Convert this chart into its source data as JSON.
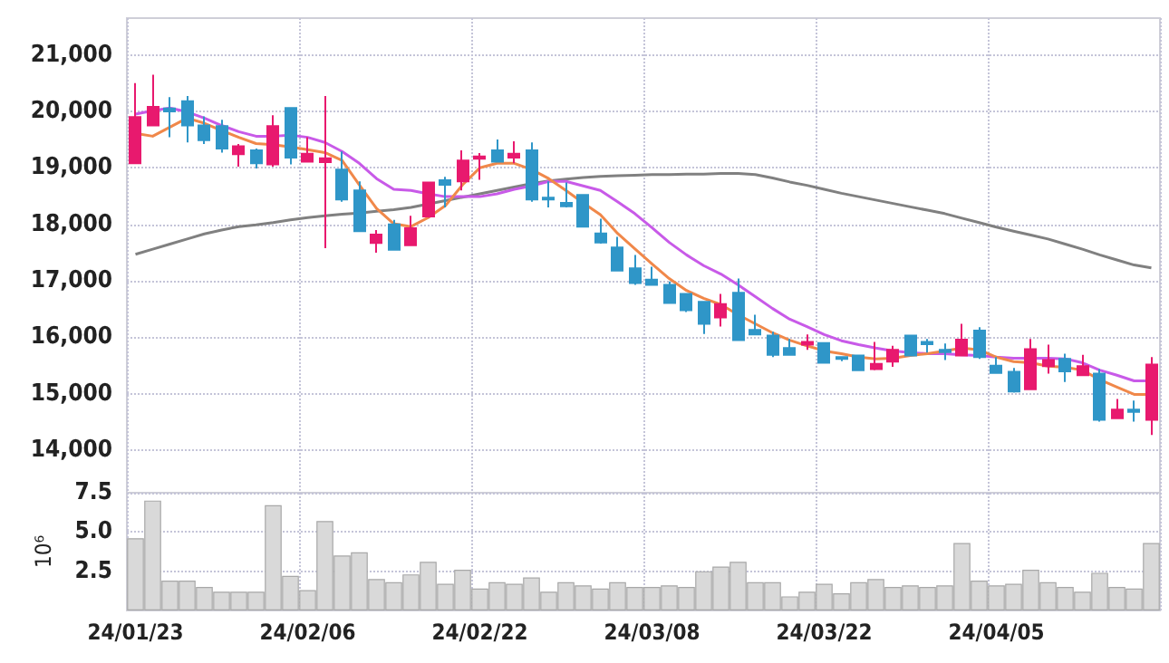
{
  "chart_data": [
    {
      "type": "candlestick",
      "categories": [
        null,
        null,
        null,
        null,
        null,
        null,
        null,
        null,
        null,
        null,
        null,
        null,
        null,
        null,
        null,
        null,
        null,
        null,
        null,
        null,
        null,
        null,
        null,
        null,
        null,
        null,
        null,
        null,
        null,
        null,
        null,
        null,
        null,
        null,
        null,
        null,
        null,
        null,
        null,
        null,
        null,
        null,
        null,
        null,
        null,
        null,
        null,
        null,
        null,
        null,
        null,
        null,
        null,
        null,
        null,
        null,
        null,
        null,
        null,
        null
      ],
      "ohlc": [
        [
          19080,
          20500,
          19080,
          19900
        ],
        [
          19750,
          20650,
          19750,
          20080
        ],
        [
          20050,
          20250,
          19540,
          20000
        ],
        [
          20180,
          20270,
          19450,
          19750
        ],
        [
          19750,
          19910,
          19420,
          19490
        ],
        [
          19740,
          19850,
          19270,
          19340
        ],
        [
          19240,
          19420,
          19020,
          19380
        ],
        [
          19310,
          19340,
          18990,
          19080
        ],
        [
          19060,
          19930,
          19020,
          19740
        ],
        [
          20060,
          20060,
          19060,
          19180
        ],
        [
          19110,
          19540,
          19110,
          19250
        ],
        [
          19100,
          20270,
          17580,
          19170
        ],
        [
          18970,
          19290,
          18400,
          18440
        ],
        [
          18600,
          18760,
          17880,
          17880
        ],
        [
          17670,
          17900,
          17500,
          17820
        ],
        [
          18000,
          18080,
          17550,
          17550
        ],
        [
          17630,
          18150,
          17630,
          17930
        ],
        [
          18140,
          18740,
          18120,
          18740
        ],
        [
          18780,
          18840,
          18300,
          18700
        ],
        [
          18760,
          19310,
          18600,
          19130
        ],
        [
          19160,
          19260,
          18790,
          19200
        ],
        [
          19310,
          19500,
          19110,
          19110
        ],
        [
          19180,
          19470,
          19080,
          19250
        ],
        [
          19310,
          19450,
          18400,
          18440
        ],
        [
          18470,
          18760,
          18300,
          18440
        ],
        [
          18380,
          18740,
          18300,
          18320
        ],
        [
          18520,
          18520,
          17960,
          17960
        ],
        [
          17840,
          18100,
          17660,
          17680
        ],
        [
          17590,
          17780,
          17170,
          17180
        ],
        [
          17220,
          17460,
          16930,
          16960
        ],
        [
          17020,
          17250,
          16930,
          16930
        ],
        [
          16930,
          16990,
          16610,
          16610
        ],
        [
          16770,
          16770,
          16450,
          16480
        ],
        [
          16630,
          16630,
          16060,
          16240
        ],
        [
          16350,
          16770,
          16190,
          16590
        ],
        [
          16790,
          17040,
          15950,
          15950
        ],
        [
          16130,
          16400,
          16050,
          16050
        ],
        [
          16030,
          16100,
          15650,
          15690
        ],
        [
          15810,
          15970,
          15690,
          15690
        ],
        [
          15870,
          16050,
          15780,
          15920
        ],
        [
          15900,
          15900,
          15550,
          15550
        ],
        [
          15650,
          15650,
          15580,
          15620
        ],
        [
          15680,
          15680,
          15420,
          15420
        ],
        [
          15440,
          15920,
          15420,
          15530
        ],
        [
          15570,
          15850,
          15480,
          15780
        ],
        [
          16030,
          16030,
          15680,
          15680
        ],
        [
          15920,
          15970,
          15730,
          15880
        ],
        [
          15780,
          15890,
          15600,
          15740
        ],
        [
          15680,
          16240,
          15680,
          15960
        ],
        [
          16120,
          16180,
          15620,
          15650
        ],
        [
          15500,
          15650,
          15370,
          15370
        ],
        [
          15390,
          15460,
          15020,
          15040
        ],
        [
          15080,
          15970,
          15080,
          15790
        ],
        [
          15490,
          15870,
          15360,
          15600
        ],
        [
          15620,
          15710,
          15210,
          15400
        ],
        [
          15330,
          15690,
          15330,
          15490
        ],
        [
          15360,
          15440,
          14510,
          14540
        ],
        [
          14570,
          14910,
          14570,
          14720
        ],
        [
          14720,
          14880,
          14510,
          14680
        ],
        [
          14540,
          15650,
          14270,
          15520
        ]
      ],
      "colors": [
        "#e8196e",
        "#e8196e",
        "#2f96c8",
        "#2f96c8",
        "#2f96c8",
        "#2f96c8",
        "#e8196e",
        "#2f96c8",
        "#e8196e",
        "#2f96c8",
        "#e8196e",
        "#e8196e",
        "#2f96c8",
        "#2f96c8",
        "#e8196e",
        "#2f96c8",
        "#e8196e",
        "#e8196e",
        "#2f96c8",
        "#e8196e",
        "#e8196e",
        "#2f96c8",
        "#e8196e",
        "#2f96c8",
        "#2f96c8",
        "#2f96c8",
        "#2f96c8",
        "#2f96c8",
        "#2f96c8",
        "#2f96c8",
        "#2f96c8",
        "#2f96c8",
        "#2f96c8",
        "#2f96c8",
        "#e8196e",
        "#2f96c8",
        "#2f96c8",
        "#2f96c8",
        "#2f96c8",
        "#e8196e",
        "#2f96c8",
        "#2f96c8",
        "#2f96c8",
        "#e8196e",
        "#e8196e",
        "#2f96c8",
        "#2f96c8",
        "#2f96c8",
        "#e8196e",
        "#2f96c8",
        "#2f96c8",
        "#2f96c8",
        "#e8196e",
        "#e8196e",
        "#2f96c8",
        "#e8196e",
        "#2f96c8",
        "#e8196e",
        "#2f96c8",
        "#e8196e"
      ],
      "series": [
        {
          "type": "line",
          "color": "#808080",
          "values": [
            17470,
            17560,
            17650,
            17740,
            17830,
            17900,
            17960,
            17990,
            18030,
            18080,
            18120,
            18150,
            18180,
            18200,
            18230,
            18260,
            18300,
            18360,
            18420,
            18480,
            18540,
            18600,
            18660,
            18720,
            18770,
            18800,
            18830,
            18850,
            18860,
            18870,
            18880,
            18880,
            18890,
            18890,
            18900,
            18900,
            18880,
            18820,
            18750,
            18690,
            18620,
            18550,
            18490,
            18430,
            18370,
            18310,
            18250,
            18190,
            18110,
            18030,
            17950,
            17880,
            17810,
            17740,
            17650,
            17560,
            17460,
            17370,
            17280,
            17230
          ]
        },
        {
          "type": "line",
          "color": "#c85ae8",
          "values": [
            19950,
            20010,
            20060,
            19990,
            19880,
            19750,
            19640,
            19560,
            19560,
            19580,
            19540,
            19450,
            19290,
            19080,
            18810,
            18620,
            18600,
            18540,
            18490,
            18490,
            18490,
            18540,
            18620,
            18680,
            18760,
            18760,
            18680,
            18600,
            18400,
            18190,
            17940,
            17680,
            17460,
            17270,
            17120,
            16930,
            16720,
            16510,
            16320,
            16190,
            16050,
            15940,
            15870,
            15810,
            15760,
            15730,
            15710,
            15710,
            15690,
            15680,
            15650,
            15630,
            15630,
            15630,
            15620,
            15550,
            15420,
            15330,
            15230,
            15230
          ]
        },
        {
          "type": "line",
          "color": "#f0884a",
          "values": [
            19610,
            19560,
            19720,
            19880,
            19790,
            19660,
            19540,
            19430,
            19410,
            19370,
            19320,
            19270,
            19130,
            18700,
            18280,
            18010,
            17960,
            18120,
            18330,
            18700,
            19000,
            19080,
            19080,
            18970,
            18810,
            18600,
            18380,
            18170,
            17840,
            17570,
            17300,
            17040,
            16830,
            16690,
            16580,
            16400,
            16240,
            16080,
            15950,
            15850,
            15760,
            15710,
            15650,
            15620,
            15630,
            15680,
            15710,
            15760,
            15810,
            15780,
            15650,
            15570,
            15550,
            15490,
            15470,
            15420,
            15250,
            15120,
            14990,
            14990
          ]
        }
      ],
      "ylim": [
        13250,
        21650
      ],
      "yticks": [
        {
          "value": 14000,
          "label": "14,000"
        },
        {
          "value": 15000,
          "label": "15,000"
        },
        {
          "value": 16000,
          "label": "16,000"
        },
        {
          "value": 17000,
          "label": "17,000"
        },
        {
          "value": 18000,
          "label": "18,000"
        },
        {
          "value": 19000,
          "label": "19,000"
        },
        {
          "value": 20000,
          "label": "20,000"
        },
        {
          "value": 21000,
          "label": "21,000"
        }
      ],
      "grid": true,
      "tick_labels": "y",
      "marker": "none",
      "line_style": "solid"
    },
    {
      "type": "bar",
      "ylabel": "10⁶",
      "categories": [
        "24/01/23",
        null,
        null,
        null,
        null,
        null,
        null,
        null,
        null,
        null,
        "24/02/06",
        null,
        null,
        null,
        null,
        null,
        null,
        null,
        null,
        null,
        "24/02/22",
        null,
        null,
        null,
        null,
        null,
        null,
        null,
        null,
        null,
        "24/03/08",
        null,
        null,
        null,
        null,
        null,
        null,
        null,
        null,
        null,
        "24/03/22",
        null,
        null,
        null,
        null,
        null,
        null,
        null,
        null,
        null,
        "24/04/05",
        null,
        null,
        null,
        null,
        null,
        null,
        null,
        null,
        null
      ],
      "values": [
        4.6,
        7.0,
        1.9,
        1.9,
        1.5,
        1.2,
        1.2,
        1.2,
        6.7,
        2.2,
        1.3,
        5.7,
        3.5,
        3.7,
        2.0,
        1.8,
        2.3,
        3.1,
        1.7,
        2.6,
        1.4,
        1.8,
        1.7,
        2.1,
        1.2,
        1.8,
        1.6,
        1.4,
        1.8,
        1.5,
        1.5,
        1.6,
        1.5,
        2.5,
        2.8,
        3.1,
        1.8,
        1.8,
        0.9,
        1.2,
        1.7,
        1.1,
        1.8,
        2.0,
        1.5,
        1.6,
        1.5,
        1.6,
        4.3,
        1.9,
        1.6,
        1.7,
        2.6,
        1.8,
        1.5,
        1.2,
        2.4,
        1.5,
        1.4,
        4.3
      ],
      "color": "#d9d9d9",
      "ylim": [
        0,
        7.5
      ],
      "yticks": [
        2.5,
        {
          "value": 5,
          "label": "5.0"
        },
        7.5
      ],
      "grid": true
    }
  ]
}
